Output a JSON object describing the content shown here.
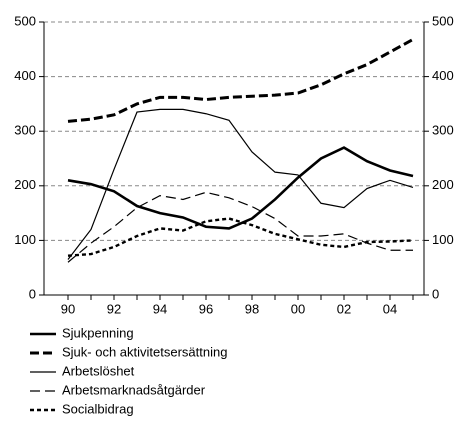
{
  "chart_data": {
    "type": "line",
    "categories": [
      "90",
      null,
      "92",
      null,
      "94",
      null,
      "96",
      null,
      "98",
      null,
      "00",
      null,
      "02",
      null,
      "04",
      null
    ],
    "series": [
      {
        "name": "Sjukpenning",
        "color": "#000000",
        "style": "bold-solid",
        "values": [
          210,
          203,
          190,
          163,
          150,
          142,
          125,
          122,
          140,
          175,
          215,
          250,
          270,
          245,
          228,
          218
        ]
      },
      {
        "name": "Sjuk- och aktivitetsersättning",
        "color": "#000000",
        "style": "bold-dashed",
        "values": [
          318,
          322,
          330,
          350,
          362,
          362,
          358,
          362,
          364,
          366,
          370,
          385,
          405,
          422,
          445,
          468
        ]
      },
      {
        "name": "Arbetslöshet",
        "color": "#000000",
        "style": "thin-solid",
        "values": [
          65,
          120,
          230,
          335,
          340,
          340,
          332,
          320,
          262,
          225,
          220,
          168,
          160,
          195,
          210,
          197
        ]
      },
      {
        "name": "Arbetsmarknadsåtgärder",
        "color": "#000000",
        "style": "thin-dashed",
        "values": [
          60,
          95,
          125,
          160,
          182,
          175,
          188,
          178,
          162,
          140,
          108,
          108,
          112,
          95,
          82,
          82
        ]
      },
      {
        "name": "Socialbidrag",
        "color": "#000000",
        "style": "dotted",
        "values": [
          72,
          75,
          88,
          108,
          122,
          118,
          135,
          140,
          128,
          112,
          102,
          92,
          88,
          97,
          98,
          100
        ]
      }
    ],
    "ylim": [
      0,
      500
    ],
    "yticks": [
      0,
      100,
      200,
      300,
      400,
      500
    ],
    "y2lim": [
      0,
      500
    ],
    "y2ticks": [
      0,
      100,
      200,
      300,
      400,
      500
    ],
    "grid": true,
    "legend": "bottom"
  }
}
